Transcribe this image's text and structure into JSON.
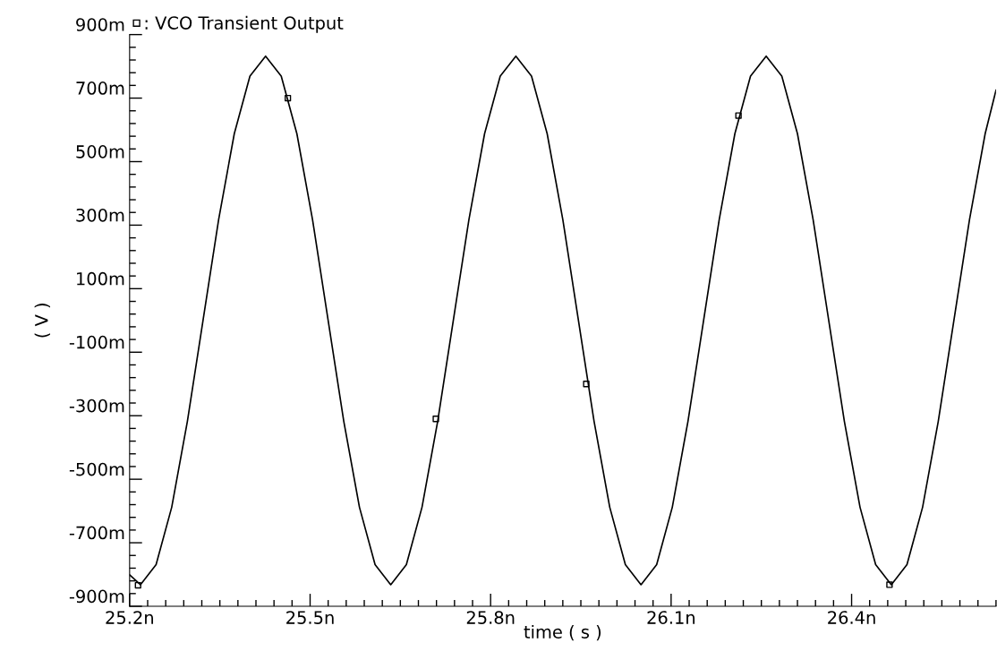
{
  "chart_data": {
    "type": "line",
    "xlabel": "time ( s )",
    "ylabel": "( V )",
    "xlim": [
      25.2,
      26.64
    ],
    "ylim": [
      -900,
      900
    ],
    "xticks": [
      {
        "value": 25.2,
        "label": "25.2n"
      },
      {
        "value": 25.5,
        "label": "25.5n"
      },
      {
        "value": 25.8,
        "label": "25.8n"
      },
      {
        "value": 26.1,
        "label": "26.1n"
      },
      {
        "value": 26.4,
        "label": "26.4n"
      }
    ],
    "yticks": [
      {
        "value": -900,
        "label": "-900m"
      },
      {
        "value": -700,
        "label": "-700m"
      },
      {
        "value": -500,
        "label": "-500m"
      },
      {
        "value": -300,
        "label": "-300m"
      },
      {
        "value": -100,
        "label": "-100m"
      },
      {
        "value": 100,
        "label": "100m"
      },
      {
        "value": 300,
        "label": "300m"
      },
      {
        "value": 500,
        "label": "500m"
      },
      {
        "value": 700,
        "label": "700m"
      },
      {
        "value": 900,
        "label": "900m"
      }
    ],
    "grid": false,
    "legend": "top left",
    "series": [
      {
        "color": "#000000",
        "marker": "none",
        "line_style": "solid",
        "x": [
          25.2,
          25.218,
          25.244,
          25.27,
          25.296,
          25.322,
          25.348,
          25.374,
          25.4,
          25.426,
          25.452,
          25.478,
          25.504,
          25.53,
          25.556,
          25.582,
          25.608,
          25.634,
          25.66,
          25.686,
          25.712,
          25.738,
          25.764,
          25.79,
          25.816,
          25.842,
          25.868,
          25.894,
          25.92,
          25.946,
          25.972,
          25.998,
          26.024,
          26.05,
          26.076,
          26.102,
          26.128,
          26.154,
          26.18,
          26.206,
          26.232,
          26.258,
          26.284,
          26.31,
          26.336,
          26.362,
          26.388,
          26.414,
          26.44,
          26.466,
          26.492,
          26.518,
          26.544,
          26.57,
          26.596,
          26.622,
          26.64
        ],
        "values": [
          -801,
          -832,
          -769,
          -588,
          -318,
          0,
          318,
          588,
          769,
          832,
          769,
          588,
          318,
          0,
          -318,
          -588,
          -769,
          -832,
          -769,
          -588,
          -318,
          0,
          318,
          588,
          769,
          832,
          769,
          588,
          318,
          0,
          -318,
          -588,
          -769,
          -832,
          -769,
          -588,
          -318,
          0,
          318,
          588,
          769,
          832,
          769,
          588,
          318,
          0,
          -318,
          -588,
          -769,
          -832,
          -769,
          -588,
          -318,
          0,
          318,
          588,
          725
        ]
      },
      {
        "type": "scatter",
        "name": ": VCO Transient Output",
        "color": "#000000",
        "marker": "square",
        "x": [
          25.214,
          25.463,
          25.709,
          25.959,
          26.212,
          26.463
        ],
        "values": [
          -834,
          700,
          -310,
          -200,
          645,
          -832
        ]
      }
    ]
  }
}
